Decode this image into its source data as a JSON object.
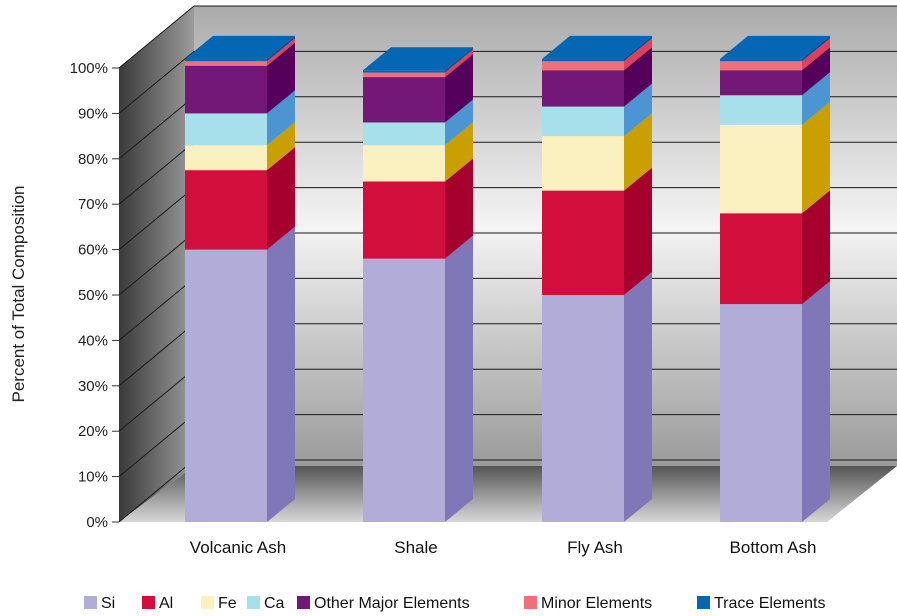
{
  "chart_data": {
    "type": "bar",
    "stacked": true,
    "three_d": true,
    "title": "",
    "xlabel": "",
    "ylabel": "Percent of Total Composition",
    "ylim": [
      0,
      100
    ],
    "yticks": [
      "0%",
      "10%",
      "20%",
      "30%",
      "40%",
      "50%",
      "60%",
      "70%",
      "80%",
      "90%",
      "100%"
    ],
    "grid": true,
    "legend_position": "bottom",
    "categories": [
      "Volcanic Ash",
      "Shale",
      "Fly Ash",
      "Bottom Ash"
    ],
    "series": [
      {
        "name": "Si",
        "color": "#b2acd8",
        "side": "#7f77b7",
        "values": [
          60,
          58,
          50,
          48
        ]
      },
      {
        "name": "Al",
        "color": "#d20f3c",
        "side": "#a5002e",
        "values": [
          17.5,
          17,
          23,
          20
        ]
      },
      {
        "name": "Fe",
        "color": "#fbf0c0",
        "side": "#c9a000",
        "values": [
          5.5,
          8,
          12,
          19.5
        ]
      },
      {
        "name": "Ca",
        "color": "#a7dfea",
        "side": "#4d94d2",
        "values": [
          7,
          5,
          6.5,
          6.5
        ]
      },
      {
        "name": "Other Major Elements",
        "color": "#741878",
        "side": "#55005a",
        "values": [
          10.5,
          10,
          8,
          5.5
        ]
      },
      {
        "name": "Minor Elements",
        "color": "#f0707a",
        "side": "#e0405a",
        "values": [
          1,
          1,
          2,
          2
        ]
      },
      {
        "name": "Trace Elements",
        "color": "#0566b4",
        "side": "#004f96",
        "values": [
          0.5,
          0.5,
          0.5,
          0.5
        ]
      }
    ]
  }
}
